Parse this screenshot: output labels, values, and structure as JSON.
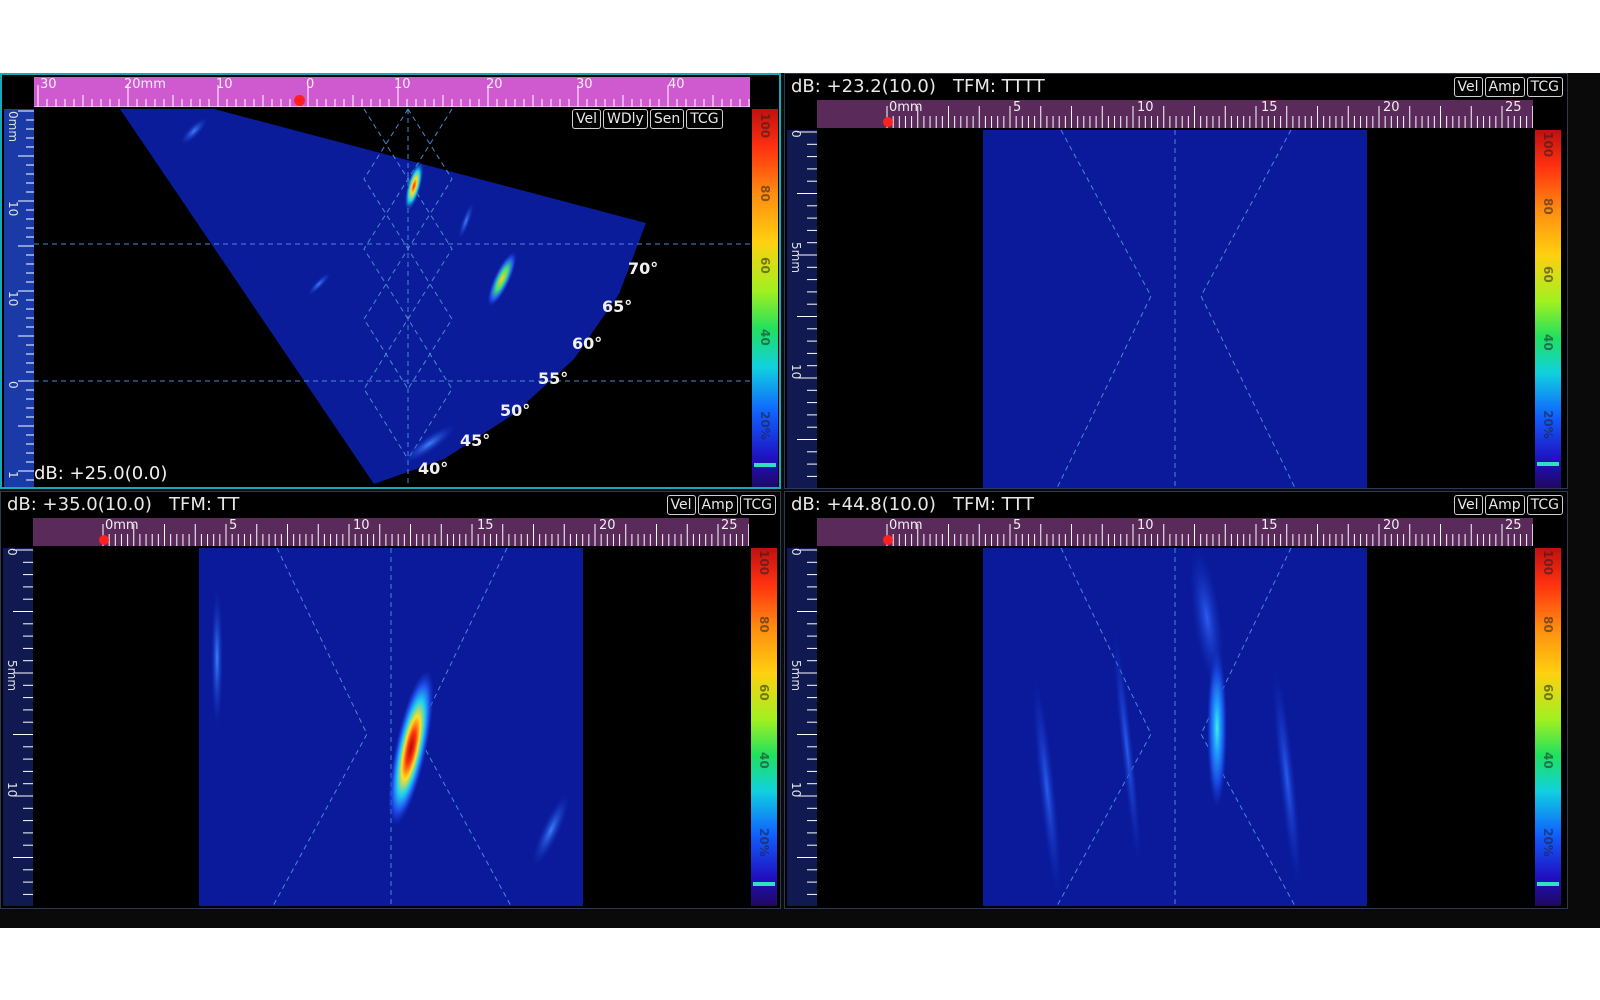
{
  "panels": {
    "sector": {
      "db_label": "dB: +25.0(0.0)",
      "buttons": [
        "Vel",
        "WDly",
        "Sen",
        "TCG"
      ],
      "top_ruler": {
        "first_label": "30",
        "unit_label": "20mm",
        "labels": [
          "10",
          "0",
          "10",
          "20",
          "30",
          "40"
        ]
      },
      "left_ruler": {
        "labels": [
          "0mm",
          "10",
          "10",
          "0",
          "1"
        ]
      },
      "angles": [
        "70°",
        "65°",
        "60°",
        "55°",
        "50°",
        "45°",
        "40°"
      ]
    },
    "tttt": {
      "header": "dB: +23.2(10.0)   TFM: TTTT",
      "buttons": [
        "Vel",
        "Amp",
        "TCG"
      ],
      "top_ruler": {
        "labels": [
          "0mm",
          "5",
          "10",
          "15",
          "20",
          "25"
        ]
      },
      "left_ruler": {
        "labels": [
          "0",
          "5mm",
          "10"
        ]
      }
    },
    "tt": {
      "header": "dB: +35.0(10.0)   TFM: TT",
      "buttons": [
        "Vel",
        "Amp",
        "TCG"
      ],
      "top_ruler": {
        "labels": [
          "0mm",
          "5",
          "10",
          "15",
          "20",
          "25"
        ]
      },
      "left_ruler": {
        "labels": [
          "0",
          "5mm",
          "10"
        ]
      }
    },
    "ttt": {
      "header": "dB: +44.8(10.0)   TFM: TTT",
      "buttons": [
        "Vel",
        "Amp",
        "TCG"
      ],
      "top_ruler": {
        "labels": [
          "0mm",
          "5",
          "10",
          "15",
          "20",
          "25"
        ]
      },
      "left_ruler": {
        "labels": [
          "0",
          "5mm",
          "10"
        ]
      }
    }
  },
  "colorbar": {
    "labels": [
      "100",
      "80",
      "60",
      "40",
      "20%"
    ]
  },
  "icons": {
    "cursor_marker": "red-dot-icon"
  }
}
